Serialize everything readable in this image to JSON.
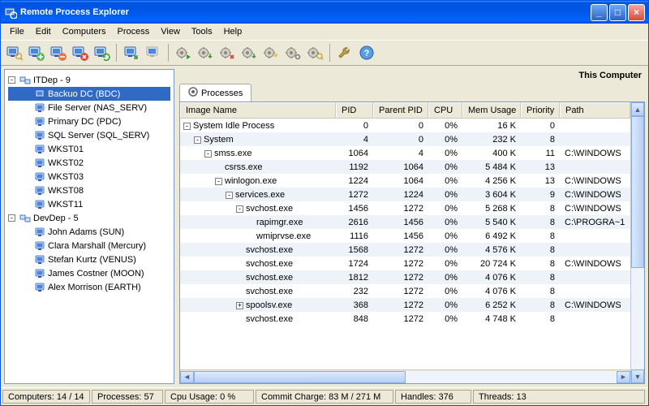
{
  "title": "Remote Process Explorer",
  "menu": [
    "File",
    "Edit",
    "Computers",
    "Process",
    "View",
    "Tools",
    "Help"
  ],
  "rightlabel": "This Computer",
  "tab": "Processes",
  "tree": [
    {
      "depth": 0,
      "exp": "-",
      "ico": "group",
      "label": "ITDep - 9",
      "sel": false
    },
    {
      "depth": 1,
      "exp": "",
      "ico": "pc",
      "label": "Backuo DC (BDC)",
      "sel": true
    },
    {
      "depth": 1,
      "exp": "",
      "ico": "pc",
      "label": "File Server (NAS_SERV)",
      "sel": false
    },
    {
      "depth": 1,
      "exp": "",
      "ico": "pc",
      "label": "Primary DC (PDC)",
      "sel": false
    },
    {
      "depth": 1,
      "exp": "",
      "ico": "pc",
      "label": "SQL Server (SQL_SERV)",
      "sel": false
    },
    {
      "depth": 1,
      "exp": "",
      "ico": "pc",
      "label": "WKST01",
      "sel": false
    },
    {
      "depth": 1,
      "exp": "",
      "ico": "pc",
      "label": "WKST02",
      "sel": false
    },
    {
      "depth": 1,
      "exp": "",
      "ico": "pc",
      "label": "WKST03",
      "sel": false
    },
    {
      "depth": 1,
      "exp": "",
      "ico": "pc",
      "label": "WKST08",
      "sel": false
    },
    {
      "depth": 1,
      "exp": "",
      "ico": "pc",
      "label": "WKST11",
      "sel": false
    },
    {
      "depth": 0,
      "exp": "-",
      "ico": "group",
      "label": "DevDep - 5",
      "sel": false
    },
    {
      "depth": 1,
      "exp": "",
      "ico": "pc",
      "label": "John Adams (SUN)",
      "sel": false
    },
    {
      "depth": 1,
      "exp": "",
      "ico": "pc",
      "label": "Clara Marshall (Mercury)",
      "sel": false
    },
    {
      "depth": 1,
      "exp": "",
      "ico": "pc",
      "label": "Stefan Kurtz (VENUS)",
      "sel": false
    },
    {
      "depth": 1,
      "exp": "",
      "ico": "pc",
      "label": "James Costner (MOON)",
      "sel": false
    },
    {
      "depth": 1,
      "exp": "",
      "ico": "pc",
      "label": "Alex Morrison (EARTH)",
      "sel": false
    }
  ],
  "cols": [
    "Image Name",
    "PID",
    "Parent PID",
    "CPU",
    "Mem Usage",
    "Priority",
    "Path"
  ],
  "rows": [
    {
      "ind": 0,
      "exp": "-",
      "name": "System Idle Process",
      "pid": "0",
      "ppid": "0",
      "cpu": "0%",
      "mem": "16 K",
      "pri": "0",
      "path": ""
    },
    {
      "ind": 1,
      "exp": "-",
      "name": "System",
      "pid": "4",
      "ppid": "0",
      "cpu": "0%",
      "mem": "232 K",
      "pri": "8",
      "path": ""
    },
    {
      "ind": 2,
      "exp": "-",
      "name": "smss.exe",
      "pid": "1064",
      "ppid": "4",
      "cpu": "0%",
      "mem": "400 K",
      "pri": "11",
      "path": "C:\\WINDOWS"
    },
    {
      "ind": 3,
      "exp": "",
      "name": "csrss.exe",
      "pid": "1192",
      "ppid": "1064",
      "cpu": "0%",
      "mem": "5 484 K",
      "pri": "13",
      "path": ""
    },
    {
      "ind": 3,
      "exp": "-",
      "name": "winlogon.exe",
      "pid": "1224",
      "ppid": "1064",
      "cpu": "0%",
      "mem": "4 256 K",
      "pri": "13",
      "path": "C:\\WINDOWS"
    },
    {
      "ind": 4,
      "exp": "-",
      "name": "services.exe",
      "pid": "1272",
      "ppid": "1224",
      "cpu": "0%",
      "mem": "3 604 K",
      "pri": "9",
      "path": "C:\\WINDOWS"
    },
    {
      "ind": 5,
      "exp": "-",
      "name": "svchost.exe",
      "pid": "1456",
      "ppid": "1272",
      "cpu": "0%",
      "mem": "5 268 K",
      "pri": "8",
      "path": "C:\\WINDOWS"
    },
    {
      "ind": 6,
      "exp": "",
      "name": "rapimgr.exe",
      "pid": "2616",
      "ppid": "1456",
      "cpu": "0%",
      "mem": "5 540 K",
      "pri": "8",
      "path": "C:\\PROGRA~1"
    },
    {
      "ind": 6,
      "exp": "",
      "name": "wmiprvse.exe",
      "pid": "1116",
      "ppid": "1456",
      "cpu": "0%",
      "mem": "6 492 K",
      "pri": "8",
      "path": ""
    },
    {
      "ind": 5,
      "exp": "",
      "name": "svchost.exe",
      "pid": "1568",
      "ppid": "1272",
      "cpu": "0%",
      "mem": "4 576 K",
      "pri": "8",
      "path": ""
    },
    {
      "ind": 5,
      "exp": "",
      "name": "svchost.exe",
      "pid": "1724",
      "ppid": "1272",
      "cpu": "0%",
      "mem": "20 724 K",
      "pri": "8",
      "path": "C:\\WINDOWS"
    },
    {
      "ind": 5,
      "exp": "",
      "name": "svchost.exe",
      "pid": "1812",
      "ppid": "1272",
      "cpu": "0%",
      "mem": "4 076 K",
      "pri": "8",
      "path": ""
    },
    {
      "ind": 5,
      "exp": "",
      "name": "svchost.exe",
      "pid": "232",
      "ppid": "1272",
      "cpu": "0%",
      "mem": "4 076 K",
      "pri": "8",
      "path": ""
    },
    {
      "ind": 5,
      "exp": "+",
      "name": "spoolsv.exe",
      "pid": "368",
      "ppid": "1272",
      "cpu": "0%",
      "mem": "6 252 K",
      "pri": "8",
      "path": "C:\\WINDOWS"
    },
    {
      "ind": 5,
      "exp": "",
      "name": "svchost.exe",
      "pid": "848",
      "ppid": "1272",
      "cpu": "0%",
      "mem": "4 748 K",
      "pri": "8",
      "path": ""
    }
  ],
  "status": {
    "computers": "Computers: 14 / 14",
    "processes": "Processes: 57",
    "cpu": "Cpu Usage: 0 %",
    "commit": "Commit Charge: 83 M / 271 M",
    "handles": "Handles: 376",
    "threads": "Threads: 13"
  },
  "toolbar_icons": [
    "monitor-search",
    "monitor-plus",
    "monitor-minus",
    "monitor-x",
    "monitor-refresh",
    "sep",
    "monitor-remote",
    "monitor-disabled",
    "sep",
    "gear-run",
    "gear-down",
    "gear-x",
    "gear-updown",
    "gear-star",
    "gear-cog",
    "gear-search",
    "sep",
    "wrench",
    "help"
  ],
  "colors": {
    "accent": "#0055e5",
    "selection": "#316ac5",
    "bg": "#ece9d8",
    "altrow": "#eef3fa"
  }
}
